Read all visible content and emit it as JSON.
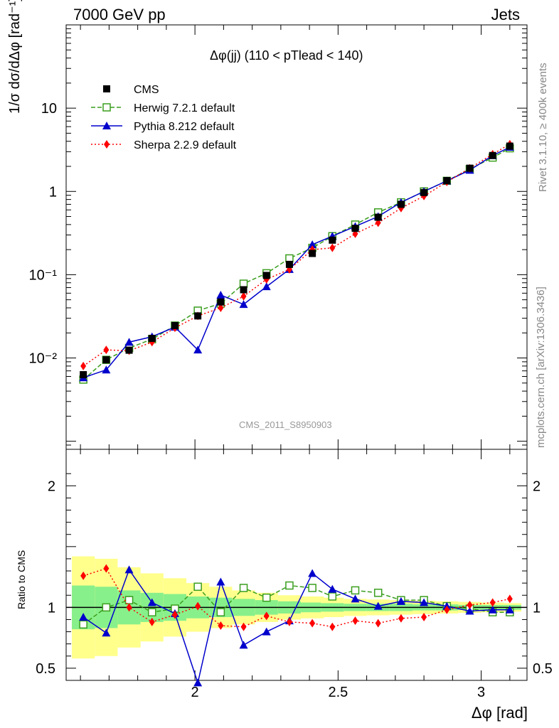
{
  "header": {
    "energy": "7000 GeV pp",
    "process": "Jets"
  },
  "side_text": {
    "rivet": "Rivet 3.1.10, ≥ 400k events",
    "mcplots": "mcplots.cern.ch [arXiv:1306.3436]"
  },
  "analysis_id": "CMS_2011_S8950903",
  "chart_data": [
    {
      "type": "line",
      "title": "Δφ(jj) (110 < pTlead <  140)",
      "ylabel": "1/σ dσ/dΔφ [rad⁻¹]",
      "xlabel": "Δφ [rad]",
      "yscale": "log",
      "xlim": [
        1.55,
        3.16
      ],
      "ylim": [
        0.0008,
        100
      ],
      "y_tick_labels": [
        "10⁻²",
        "10⁻¹",
        "1",
        "10"
      ],
      "x": [
        1.61,
        1.69,
        1.77,
        1.85,
        1.93,
        2.01,
        2.09,
        2.17,
        2.25,
        2.33,
        2.41,
        2.48,
        2.56,
        2.64,
        2.72,
        2.8,
        2.88,
        2.96,
        3.04,
        3.1
      ],
      "series": [
        {
          "name": "CMS",
          "color": "#000000",
          "marker": "square-filled",
          "values": [
            0.0063,
            0.0095,
            0.0124,
            0.0172,
            0.0245,
            0.032,
            0.047,
            0.066,
            0.098,
            0.133,
            0.18,
            0.26,
            0.36,
            0.49,
            0.7,
            0.97,
            1.35,
            1.9,
            2.7,
            3.5
          ]
        },
        {
          "name": "Herwig 7.2.1 default",
          "color": "#3a9e1e",
          "marker": "square-open",
          "values": [
            0.0055,
            0.0095,
            0.0132,
            0.0168,
            0.0245,
            0.037,
            0.045,
            0.078,
            0.104,
            0.157,
            0.21,
            0.29,
            0.4,
            0.56,
            0.74,
            1.0,
            1.34,
            1.85,
            2.55,
            3.3
          ]
        },
        {
          "name": "Pythia 8.212 default",
          "color": "#0000cc",
          "marker": "triangle-filled",
          "values": [
            0.0058,
            0.0072,
            0.0155,
            0.018,
            0.0235,
            0.0125,
            0.057,
            0.044,
            0.072,
            0.116,
            0.23,
            0.29,
            0.38,
            0.5,
            0.74,
            1.0,
            1.34,
            1.8,
            2.7,
            3.4
          ]
        },
        {
          "name": "Sherpa 2.2.9 default",
          "color": "#ff0000",
          "marker": "diamond-filled",
          "values": [
            0.008,
            0.0125,
            0.0122,
            0.0155,
            0.023,
            0.032,
            0.04,
            0.055,
            0.088,
            0.116,
            0.2,
            0.21,
            0.31,
            0.42,
            0.63,
            0.88,
            1.3,
            1.9,
            2.8,
            3.7
          ]
        }
      ]
    },
    {
      "type": "line",
      "ylabel": "Ratio to CMS",
      "xlabel": "Δφ [rad]",
      "xlim": [
        1.55,
        3.16
      ],
      "ylim": [
        0.4,
        2.3
      ],
      "y_tick_labels": [
        "0.5",
        "1",
        "2"
      ],
      "x_tick_labels": [
        "2",
        "2.5",
        "3"
      ],
      "x": [
        1.61,
        1.69,
        1.77,
        1.85,
        1.93,
        2.01,
        2.09,
        2.17,
        2.25,
        2.33,
        2.41,
        2.48,
        2.56,
        2.64,
        2.72,
        2.8,
        2.88,
        2.96,
        3.04,
        3.1
      ],
      "band_stat": [
        0.18,
        0.17,
        0.14,
        0.12,
        0.11,
        0.09,
        0.08,
        0.07,
        0.06,
        0.05,
        0.04,
        0.035,
        0.03,
        0.03,
        0.03,
        0.025,
        0.025,
        0.02,
        0.02,
        0.02
      ],
      "band_total": [
        0.42,
        0.4,
        0.33,
        0.28,
        0.24,
        0.2,
        0.17,
        0.14,
        0.12,
        0.1,
        0.09,
        0.08,
        0.07,
        0.065,
        0.06,
        0.055,
        0.05,
        0.045,
        0.04,
        0.035
      ],
      "series": [
        {
          "name": "Herwig 7.2.1 default",
          "color": "#3a9e1e",
          "values": [
            0.86,
            1.0,
            1.06,
            0.96,
            0.99,
            1.17,
            0.96,
            1.16,
            1.08,
            1.18,
            1.16,
            1.09,
            1.14,
            1.12,
            1.06,
            1.06,
            1.01,
            0.99,
            0.96,
            0.96
          ]
        },
        {
          "name": "Pythia 8.212 default",
          "color": "#0000cc",
          "values": [
            0.92,
            0.79,
            1.31,
            1.04,
            0.95,
            0.38,
            1.21,
            0.69,
            0.8,
            0.89,
            1.28,
            1.15,
            1.07,
            1.01,
            1.05,
            1.04,
            1.01,
            0.97,
            0.98,
            0.98
          ]
        },
        {
          "name": "Sherpa 2.2.9 default",
          "color": "#ff0000",
          "values": [
            1.26,
            1.32,
            1.0,
            0.88,
            0.94,
            1.01,
            0.85,
            0.84,
            0.93,
            0.88,
            0.87,
            0.84,
            0.89,
            0.87,
            0.91,
            0.92,
            0.98,
            1.02,
            1.04,
            1.07
          ]
        }
      ]
    }
  ]
}
